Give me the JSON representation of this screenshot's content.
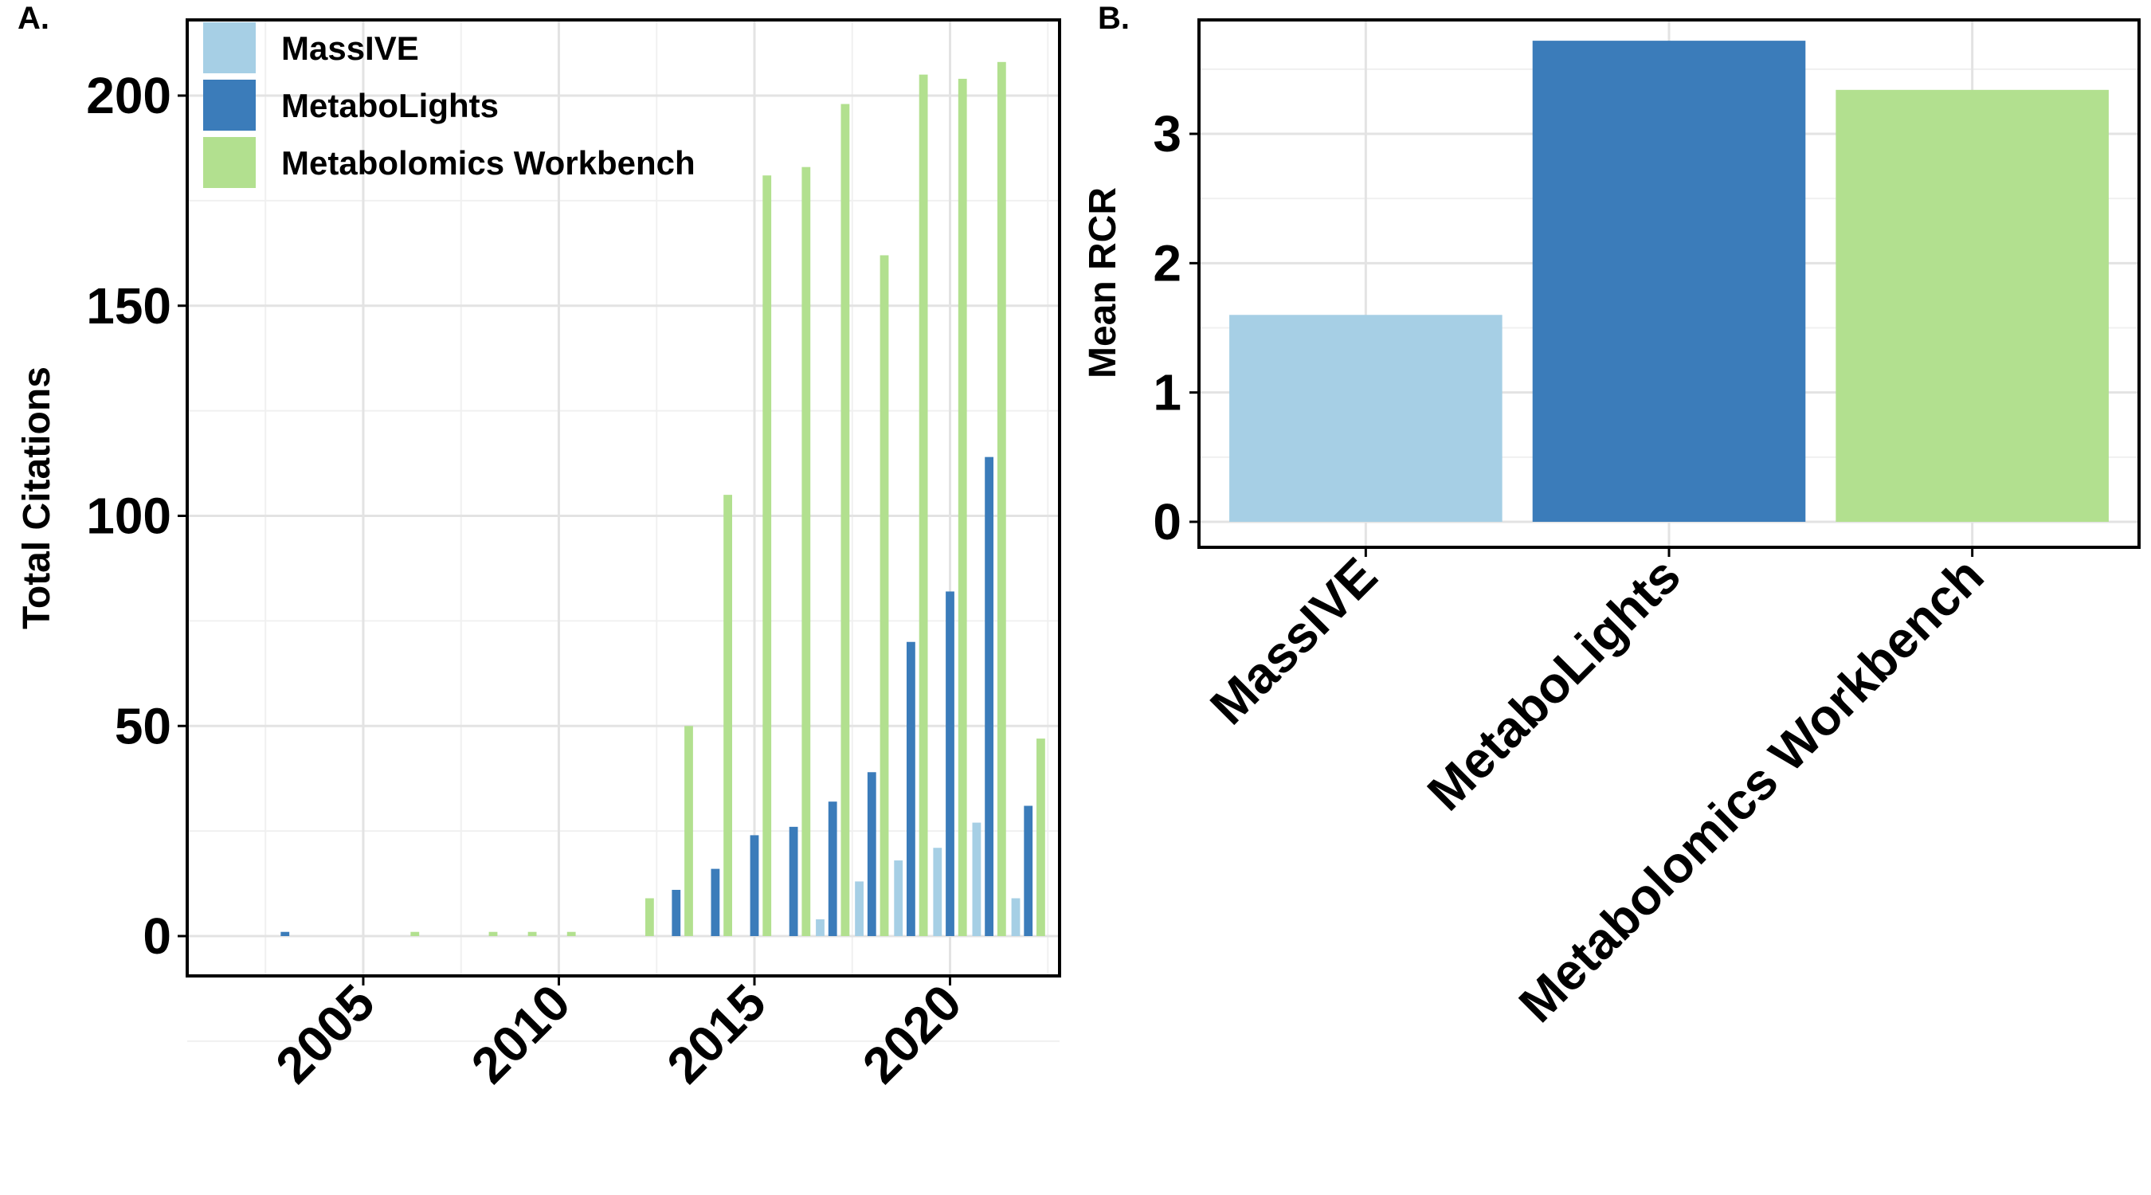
{
  "panels": {
    "a": {
      "letter": "A."
    },
    "b": {
      "letter": "B."
    }
  },
  "colors": {
    "MassIVE": "#a6cfe5",
    "MetaboLights": "#3b7cba",
    "Metabolomics Workbench": "#b2e08f"
  },
  "chart_data": [
    {
      "type": "bar",
      "subtype": "grouped",
      "title": "",
      "xlabel": "",
      "ylabel": "Total Citations",
      "ylim": [
        0,
        220
      ],
      "y_ticks": [
        0,
        50,
        100,
        150,
        200
      ],
      "x_ticks": [
        2005,
        2010,
        2015,
        2020
      ],
      "xlim": [
        2000.5,
        2022.8
      ],
      "grid": true,
      "legend_position": "top-left",
      "legend": [
        "MassIVE",
        "MetaboLights",
        "Metabolomics Workbench"
      ],
      "x": [
        2003,
        2004,
        2005,
        2006,
        2007,
        2008,
        2009,
        2010,
        2011,
        2012,
        2013,
        2014,
        2015,
        2016,
        2017,
        2018,
        2019,
        2020,
        2021,
        2022
      ],
      "series": [
        {
          "name": "MassIVE",
          "color": "#a6cfe5",
          "values": [
            0,
            0,
            0,
            0,
            0,
            0,
            0,
            0,
            0,
            0,
            0,
            0,
            0,
            0,
            4,
            13,
            18,
            21,
            27,
            9
          ]
        },
        {
          "name": "MetaboLights",
          "color": "#3b7cba",
          "values": [
            1,
            0,
            0,
            0,
            0,
            0,
            0,
            0,
            0,
            0,
            11,
            16,
            24,
            26,
            32,
            39,
            70,
            82,
            114,
            31
          ]
        },
        {
          "name": "Metabolomics Workbench",
          "color": "#b2e08f",
          "values": [
            0,
            0,
            0,
            1,
            0,
            1,
            1,
            1,
            0,
            9,
            50,
            105,
            181,
            183,
            198,
            162,
            205,
            204,
            208,
            47
          ]
        }
      ]
    },
    {
      "type": "bar",
      "title": "",
      "xlabel": "",
      "ylabel": "Mean RCR",
      "ylim": [
        0,
        3.9
      ],
      "y_ticks": [
        0,
        1,
        2,
        3
      ],
      "grid": true,
      "categories": [
        "MassIVE",
        "MetaboLights",
        "Metabolomics Workbench"
      ],
      "values": [
        1.6,
        3.72,
        3.34
      ],
      "colors": [
        "#a6cfe5",
        "#3b7cba",
        "#b2e08f"
      ]
    }
  ]
}
